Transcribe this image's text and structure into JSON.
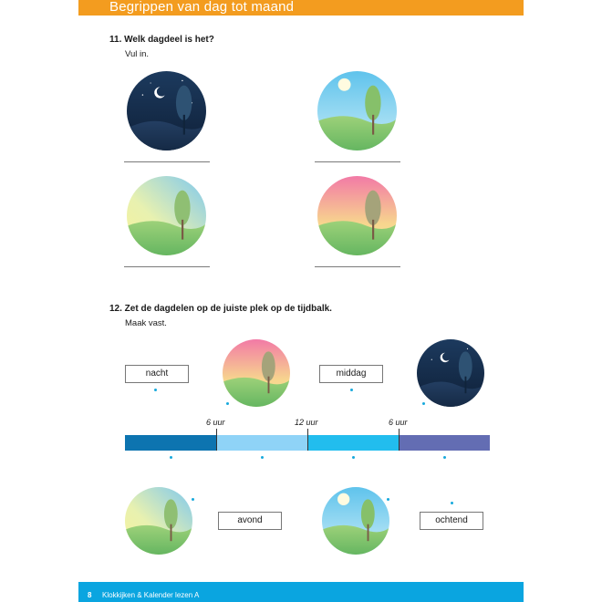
{
  "header": {
    "title": "Begrippen van dag tot maand"
  },
  "footer": {
    "page_number": "8",
    "book_title": "Klokkijken & Kalender lezen A"
  },
  "question11": {
    "title": "11. Welk dagdeel is het?",
    "instruction": "Vul in.",
    "scenes": [
      "night",
      "day",
      "evening",
      "morning"
    ]
  },
  "question12": {
    "title": "12. Zet de dagdelen op de juiste plek op de tijdbalk.",
    "instruction": "Maak vast.",
    "top_labels": [
      "nacht",
      "middag"
    ],
    "bottom_labels": [
      "avond",
      "ochtend"
    ],
    "timeline": {
      "ticks": [
        "6 uur",
        "12 uur",
        "6 uur"
      ],
      "segment_colors": [
        "#0d74b0",
        "#8fd3f7",
        "#22bdee",
        "#636db3"
      ]
    }
  }
}
